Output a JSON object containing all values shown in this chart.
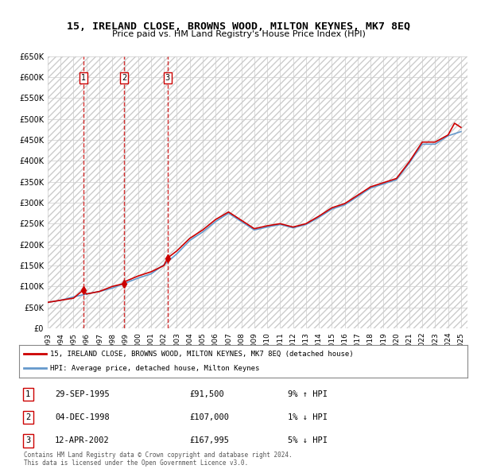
{
  "title": "15, IRELAND CLOSE, BROWNS WOOD, MILTON KEYNES, MK7 8EQ",
  "subtitle": "Price paid vs. HM Land Registry's House Price Index (HPI)",
  "legend_line1": "15, IRELAND CLOSE, BROWNS WOOD, MILTON KEYNES, MK7 8EQ (detached house)",
  "legend_line2": "HPI: Average price, detached house, Milton Keynes",
  "copyright": "Contains HM Land Registry data © Crown copyright and database right 2024.\nThis data is licensed under the Open Government Licence v3.0.",
  "transactions": [
    {
      "num": 1,
      "date": "29-SEP-1995",
      "price": "£91,500",
      "hpi": "9% ↑ HPI",
      "year": 1995.75,
      "value": 91500
    },
    {
      "num": 2,
      "date": "04-DEC-1998",
      "price": "£107,000",
      "hpi": "1% ↓ HPI",
      "year": 1998.92,
      "value": 107000
    },
    {
      "num": 3,
      "date": "12-APR-2002",
      "price": "£167,995",
      "hpi": "5% ↓ HPI",
      "year": 2002.28,
      "value": 167995
    }
  ],
  "hpi_years": [
    1993,
    1994,
    1995,
    1996,
    1997,
    1998,
    1999,
    2000,
    2001,
    2002,
    2003,
    2004,
    2005,
    2006,
    2007,
    2008,
    2009,
    2010,
    2011,
    2012,
    2013,
    2014,
    2015,
    2016,
    2017,
    2018,
    2019,
    2020,
    2021,
    2022,
    2023,
    2024,
    2025
  ],
  "hpi_values": [
    62000,
    67000,
    75000,
    82000,
    88000,
    96000,
    108000,
    120000,
    130000,
    152000,
    178000,
    210000,
    230000,
    255000,
    275000,
    255000,
    235000,
    242000,
    248000,
    240000,
    248000,
    265000,
    285000,
    295000,
    315000,
    335000,
    345000,
    355000,
    395000,
    440000,
    440000,
    460000,
    470000
  ],
  "price_years": [
    1993,
    1994,
    1995,
    1995.75,
    1996,
    1997,
    1998,
    1998.92,
    1999,
    2000,
    2001,
    2002,
    2002.28,
    2003,
    2004,
    2005,
    2006,
    2007,
    2008,
    2009,
    2010,
    2011,
    2012,
    2013,
    2014,
    2015,
    2016,
    2017,
    2018,
    2019,
    2020,
    2021,
    2022,
    2023,
    2024,
    2024.5,
    2025
  ],
  "price_values": [
    62000,
    67000,
    72000,
    91500,
    82000,
    88000,
    100000,
    107000,
    112000,
    125000,
    135000,
    150000,
    167995,
    185000,
    215000,
    235000,
    260000,
    278000,
    258000,
    238000,
    245000,
    250000,
    242000,
    250000,
    268000,
    288000,
    298000,
    318000,
    338000,
    348000,
    358000,
    398000,
    445000,
    445000,
    462000,
    490000,
    480000
  ],
  "ylim": [
    0,
    650000
  ],
  "yticks": [
    0,
    50000,
    100000,
    150000,
    200000,
    250000,
    300000,
    350000,
    400000,
    450000,
    500000,
    550000,
    600000,
    650000
  ],
  "xlim": [
    1993,
    2025.5
  ],
  "xticks": [
    1993,
    1994,
    1995,
    1996,
    1997,
    1998,
    1999,
    2000,
    2001,
    2002,
    2003,
    2004,
    2005,
    2006,
    2007,
    2008,
    2009,
    2010,
    2011,
    2012,
    2013,
    2014,
    2015,
    2016,
    2017,
    2018,
    2019,
    2020,
    2021,
    2022,
    2023,
    2024,
    2025
  ],
  "hpi_color": "#6699cc",
  "price_color": "#cc0000",
  "vline_color": "#cc0000",
  "hatch_color": "#cccccc",
  "bg_color": "#ffffff",
  "plot_bg": "#ffffff"
}
